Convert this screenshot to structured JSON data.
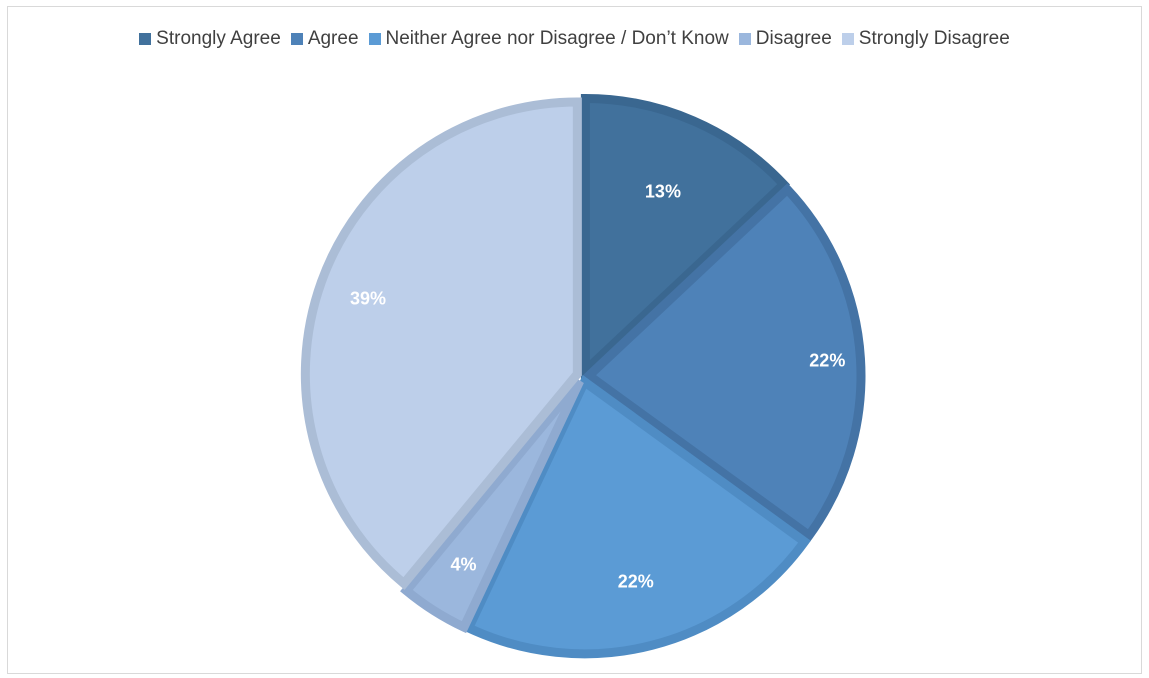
{
  "chart_data": {
    "type": "pie",
    "title": "",
    "legend_position": "top",
    "slices": [
      {
        "name": "Strongly Agree",
        "value": 13,
        "label": "13%",
        "color": "#41719C",
        "edge": "#3A6790"
      },
      {
        "name": "Agree",
        "value": 22,
        "label": "22%",
        "color": "#4E82B8",
        "edge": "#4473A5"
      },
      {
        "name": "Neither Agree nor Disagree / Don’t Know",
        "value": 22,
        "label": "22%",
        "color": "#5B9BD5",
        "edge": "#4F8CC4"
      },
      {
        "name": "Disagree",
        "value": 4,
        "label": "4%",
        "color": "#9BB7DD",
        "edge": "#8FAAD0"
      },
      {
        "name": "Strongly Disagree",
        "value": 39,
        "label": "39%",
        "color": "#BDCFEA",
        "edge": "#ABBDD6"
      }
    ]
  }
}
